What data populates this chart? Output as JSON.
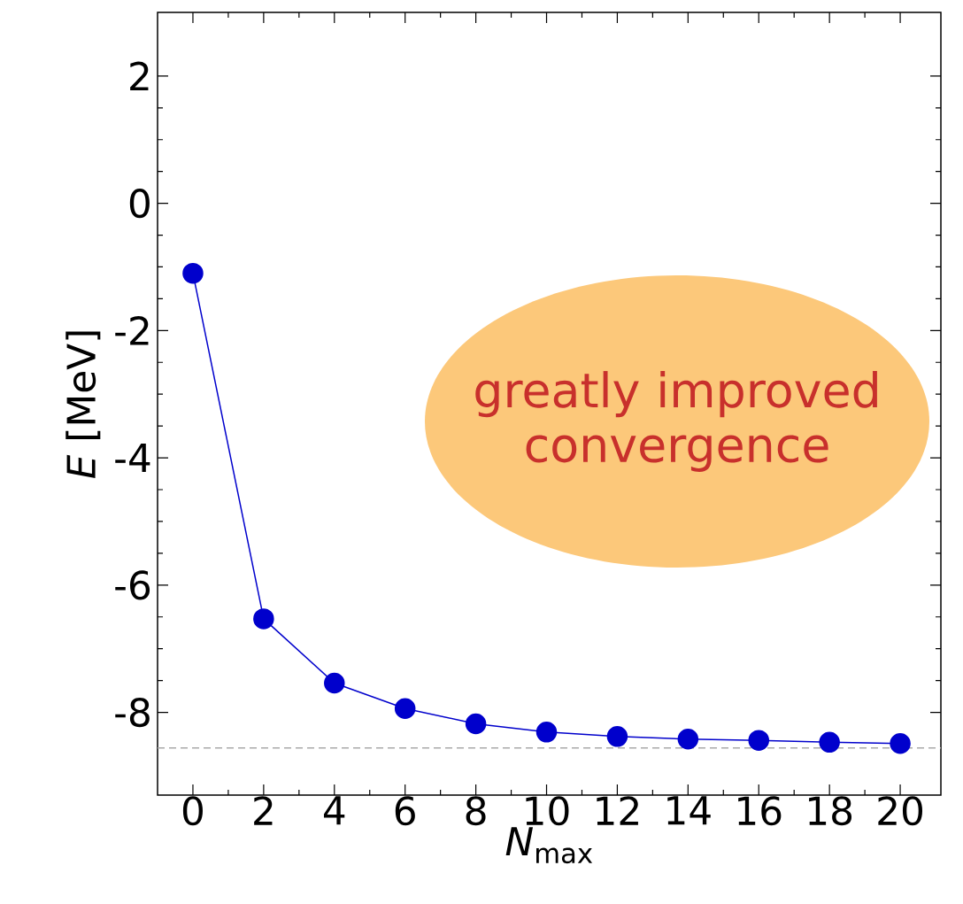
{
  "chart_data": {
    "type": "line",
    "xlabel": "*N*$_{max}$",
    "ylabel": "*E*  [MeV]",
    "x": [
      0,
      2,
      4,
      6,
      8,
      10,
      12,
      14,
      16,
      18,
      20
    ],
    "series": [
      {
        "color": "#0000cc",
        "values": [
          -1.1,
          -6.53,
          -7.54,
          -7.94,
          -8.18,
          -8.31,
          -8.38,
          -8.42,
          -8.44,
          -8.47,
          -8.49
        ]
      }
    ],
    "xlim": [
      -1,
      21.15
    ],
    "ylim": [
      -9.3,
      3
    ],
    "xticks": [
      0,
      2,
      4,
      6,
      8,
      10,
      12,
      14,
      16,
      18,
      20
    ],
    "yticks": [
      -8,
      -6,
      -4,
      -2,
      0,
      2
    ],
    "marker": "circle",
    "line_style": "solid",
    "ref_lines": [
      {
        "axis": "y",
        "value": -8.56,
        "color": "#aaaaaa",
        "line_style": "dashed"
      }
    ],
    "annotations": [
      "greatly improved convergence"
    ]
  }
}
